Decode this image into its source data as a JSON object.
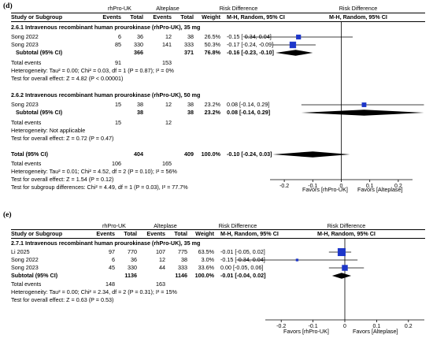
{
  "panels": [
    {
      "label": "(d)",
      "group_headers": [
        "rhPro-UK",
        "Alteplase",
        "Risk Difference",
        "Risk Difference"
      ],
      "col_headers": [
        "Study or Subgroup",
        "Events",
        "Total",
        "Events",
        "Total",
        "Weight",
        "M-H, Random, 95% CI",
        "M-H, Random, 95% CI"
      ],
      "subgroups": [
        {
          "title": "2.6.1 Intravenous recombinant human prourokinase (rhPro-UK), 35 mg",
          "studies": [
            {
              "name": "Song 2022",
              "e1": "6",
              "t1": "36",
              "e2": "12",
              "t2": "38",
              "weight": "26.5%",
              "ci": "-0.15 [-0.34, 0.04]"
            },
            {
              "name": "Song 2023",
              "e1": "85",
              "t1": "330",
              "e2": "141",
              "t2": "333",
              "weight": "50.3%",
              "ci": "-0.17 [-0.24, -0.09]"
            }
          ],
          "subtotal": {
            "label": "Subtotal (95% CI)",
            "t1": "366",
            "t2": "371",
            "weight": "76.8%",
            "ci": "-0.16 [-0.23, -0.10]"
          },
          "total_events": {
            "label": "Total events",
            "e1": "91",
            "e2": "153"
          },
          "heterogeneity": "Heterogeneity: Tau² = 0.00; Chi² = 0.03, df = 1 (P = 0.87); I² = 0%",
          "overall_test": "Test for overall effect: Z = 4.82 (P < 0.00001)"
        },
        {
          "title": "2.6.2 Intravenous recombinant human prourokinase (rhPro-UK), 50 mg",
          "studies": [
            {
              "name": "Song 2023",
              "e1": "15",
              "t1": "38",
              "e2": "12",
              "t2": "38",
              "weight": "23.2%",
              "ci": "0.08 [-0.14, 0.29]"
            }
          ],
          "subtotal": {
            "label": "Subtotal (95% CI)",
            "t1": "38",
            "t2": "38",
            "weight": "23.2%",
            "ci": "0.08 [-0.14, 0.29]"
          },
          "total_events": {
            "label": "Total events",
            "e1": "15",
            "e2": "12"
          },
          "heterogeneity": "Heterogeneity: Not applicable",
          "overall_test": "Test for overall effect: Z = 0.72 (P = 0.47)"
        }
      ],
      "total": {
        "label": "Total (95% CI)",
        "t1": "404",
        "t2": "409",
        "weight": "100.0%",
        "ci": "-0.10 [-0.24, 0.03]"
      },
      "total_events": {
        "label": "Total events",
        "e1": "106",
        "e2": "165"
      },
      "heterogeneity": "Heterogeneity: Tau² = 0.01; Chi² = 4.52, df = 2 (P = 0.10); I² = 56%",
      "overall_test": "Test for overall effect: Z = 1.54 (P = 0.12)",
      "subgroup_test": "Test for subgroup differences: Chi² = 4.49, df = 1 (P = 0.03), I² = 77.7%",
      "axis": {
        "ticks": [
          "-0.2",
          "-0.1",
          "0",
          "0.1",
          "0.2"
        ],
        "favors_left": "Favors [rhPro-UK]",
        "favors_right": "Favors [Alteplase]"
      }
    },
    {
      "label": "(e)",
      "group_headers": [
        "rhPro-UK",
        "Alteplase",
        "Risk Difference",
        "Risk Difference"
      ],
      "col_headers": [
        "Study or Subgroup",
        "Events",
        "Total",
        "Events",
        "Total",
        "Weight",
        "M-H, Random, 95% CI",
        "M-H, Random, 95% CI"
      ],
      "subgroup_title": "2.7.1 Intravenous recombinant human prourokinase (rhPro-UK), 35 mg",
      "studies": [
        {
          "name": "Li 2025",
          "e1": "97",
          "t1": "770",
          "e2": "107",
          "t2": "775",
          "weight": "63.5%",
          "ci": "-0.01 [-0.05, 0.02]"
        },
        {
          "name": "Song 2022",
          "e1": "6",
          "t1": "36",
          "e2": "12",
          "t2": "38",
          "weight": "3.0%",
          "ci": "-0.15 [-0.34, 0.04]"
        },
        {
          "name": "Song 2023",
          "e1": "45",
          "t1": "330",
          "e2": "44",
          "t2": "333",
          "weight": "33.6%",
          "ci": "0.00 [-0.05, 0.06]"
        }
      ],
      "subtotal": {
        "label": "Subtotal (95% CI)",
        "t1": "1136",
        "t2": "1146",
        "weight": "100.0%",
        "ci": "-0.01 [-0.04, 0.02]"
      },
      "total_events": {
        "label": "Total events",
        "e1": "148",
        "e2": "163"
      },
      "heterogeneity": "Heterogeneity: Tau² = 0.00; Chi² = 2.34, df = 2 (P = 0.31); I² = 15%",
      "overall_test": "Test for overall effect: Z = 0.63 (P = 0.53)",
      "axis": {
        "ticks": [
          "-0.2",
          "-0.1",
          "0",
          "0.1",
          "0.2"
        ],
        "favors_left": "Favors [rhPro-UK]",
        "favors_right": "Favors [Alteplase]"
      }
    }
  ],
  "chart_data": [
    {
      "type": "forest",
      "xlim": [
        -0.25,
        0.25
      ],
      "x_ticks": [
        -0.2,
        -0.1,
        0,
        0.1,
        0.2
      ],
      "studies": [
        {
          "name": "Song 2022",
          "estimate": -0.15,
          "ci_low": -0.34,
          "ci_high": 0.04,
          "weight": 26.5
        },
        {
          "name": "Song 2023",
          "estimate": -0.17,
          "ci_low": -0.24,
          "ci_high": -0.09,
          "weight": 50.3
        },
        {
          "name": "Song 2023",
          "estimate": 0.08,
          "ci_low": -0.14,
          "ci_high": 0.29,
          "weight": 23.2
        }
      ],
      "diamonds": [
        {
          "estimate": -0.16,
          "ci_low": -0.23,
          "ci_high": -0.1
        },
        {
          "estimate": 0.08,
          "ci_low": -0.14,
          "ci_high": 0.29
        },
        {
          "estimate": -0.1,
          "ci_low": -0.24,
          "ci_high": 0.03
        }
      ]
    },
    {
      "type": "forest",
      "xlim": [
        -0.25,
        0.25
      ],
      "x_ticks": [
        -0.2,
        -0.1,
        0,
        0.1,
        0.2
      ],
      "studies": [
        {
          "name": "Li 2025",
          "estimate": -0.01,
          "ci_low": -0.05,
          "ci_high": 0.02,
          "weight": 63.5
        },
        {
          "name": "Song 2022",
          "estimate": -0.15,
          "ci_low": -0.34,
          "ci_high": 0.04,
          "weight": 3.0
        },
        {
          "name": "Song 2023",
          "estimate": 0.0,
          "ci_low": -0.05,
          "ci_high": 0.06,
          "weight": 33.6
        }
      ],
      "diamonds": [
        {
          "estimate": -0.01,
          "ci_low": -0.04,
          "ci_high": 0.02
        }
      ]
    }
  ]
}
